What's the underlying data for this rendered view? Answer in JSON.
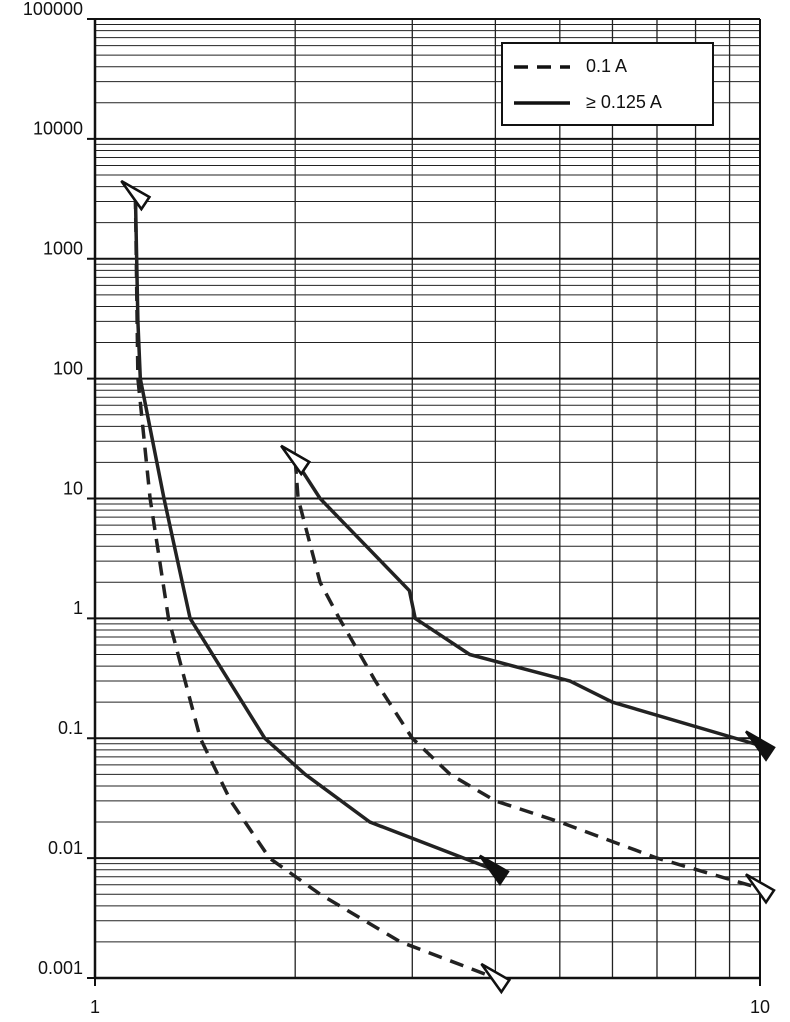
{
  "chart_data": {
    "type": "line",
    "xscale": "log",
    "yscale": "log",
    "xlim": [
      1,
      10
    ],
    "xticks": [
      1,
      10
    ],
    "ylim": [
      0.001,
      100000
    ],
    "yticks": [
      0.001,
      0.01,
      0.1,
      1,
      10,
      100,
      1000,
      10000,
      100000
    ],
    "grid": true,
    "minor_grid": true,
    "legend_position": "upper right",
    "legend": [
      {
        "name": "0.1 A",
        "dash": true
      },
      {
        "name": "≥ 0.125 A",
        "dash": false
      }
    ],
    "series": [
      {
        "color": "#222222",
        "dash": false,
        "x": [
          1.15,
          1.16,
          1.17,
          1.27,
          1.39,
          1.8,
          2.07,
          2.59,
          3.98
        ],
        "values": [
          3400,
          300,
          100,
          10,
          1,
          0.1,
          0.05,
          0.02,
          0.008
        ]
      },
      {
        "color": "#222222",
        "dash": false,
        "x": [
          2,
          2.18,
          2.97,
          3.03,
          3.66,
          5.18,
          6,
          10
        ],
        "values": [
          21,
          10,
          1.7,
          1,
          0.5,
          0.3,
          0.2,
          0.087
        ]
      },
      {
        "color": "#222222",
        "dash": true,
        "x": [
          1.15,
          1.16,
          1.21,
          1.29,
          1.44,
          1.6,
          1.83,
          2.18,
          2.88,
          4
        ],
        "values": [
          3400,
          100,
          10,
          1,
          0.1,
          0.03,
          0.01,
          0.005,
          0.002,
          0.001
        ]
      },
      {
        "color": "#222222",
        "dash": true,
        "x": [
          2,
          2.02,
          2.18,
          2.33,
          2.64,
          3,
          3.42,
          4,
          5,
          7,
          10
        ],
        "values": [
          21,
          10,
          2,
          1,
          0.3,
          0.1,
          0.05,
          0.03,
          0.02,
          0.01,
          0.0056
        ]
      }
    ]
  }
}
